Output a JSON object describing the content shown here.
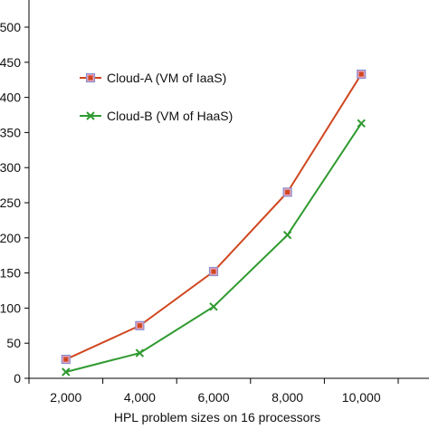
{
  "chart_data": {
    "type": "line",
    "title": "",
    "xlabel": "HPL problem sizes on 16 processors",
    "ylabel": "",
    "categories": [
      "2,000",
      "4,000",
      "6,000",
      "8,000",
      "10,000"
    ],
    "x": [
      2000,
      4000,
      6000,
      8000,
      10000
    ],
    "ylim": [
      0,
      500
    ],
    "yticks": [
      "0",
      "50",
      "100",
      "150",
      "200",
      "250",
      "300",
      "350",
      "400",
      "450",
      "500"
    ],
    "grid": false,
    "legend_position": "top-left",
    "series": [
      {
        "name": "Cloud-A (VM of IaaS)",
        "marker": "square",
        "color": "#d0461f",
        "marker_fill": "#e8a0b4",
        "marker_edge": "#8a8fd0",
        "values": [
          27,
          75,
          152,
          265,
          433
        ]
      },
      {
        "name": "Cloud-B (VM of HaaS)",
        "marker": "x",
        "color": "#2f9a2f",
        "values": [
          9,
          36,
          102,
          204,
          363
        ]
      }
    ]
  }
}
